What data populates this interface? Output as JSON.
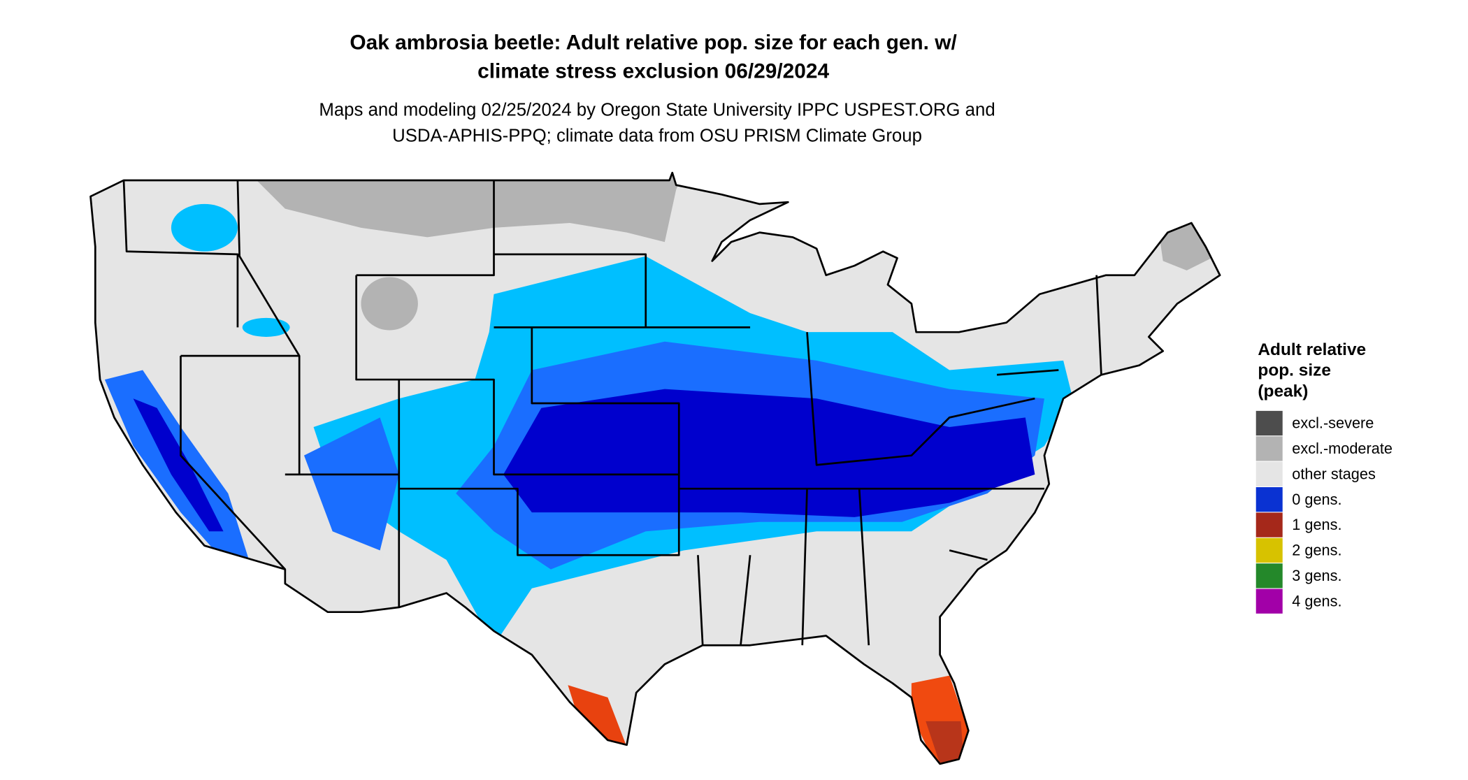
{
  "header": {
    "title_lines": [
      "Oak ambrosia beetle: Adult relative pop. size for each gen. w/",
      "climate stress exclusion 06/29/2024"
    ],
    "subtitle_lines": [
      "Maps and modeling 02/25/2024 by Oregon State University IPPC USPEST.ORG and",
      "USDA-APHIS-PPQ; climate data from OSU PRISM Climate Group"
    ]
  },
  "legend": {
    "title_lines": [
      "Adult relative",
      "pop. size",
      "(peak)"
    ],
    "items": [
      {
        "name": "excl.-severe",
        "color": "#4d4d4d"
      },
      {
        "name": "excl.-moderate",
        "color": "#b3b3b3"
      },
      {
        "name": "other stages",
        "color": "#e5e5e5"
      },
      {
        "name": "0 gens.",
        "color": "#0a32d2"
      },
      {
        "name": "1 gens.",
        "color": "#a5281a"
      },
      {
        "name": "2 gens.",
        "color": "#d7c200"
      },
      {
        "name": "3 gens.",
        "color": "#24882a"
      },
      {
        "name": "4 gens.",
        "color": "#a200a8"
      }
    ]
  }
}
